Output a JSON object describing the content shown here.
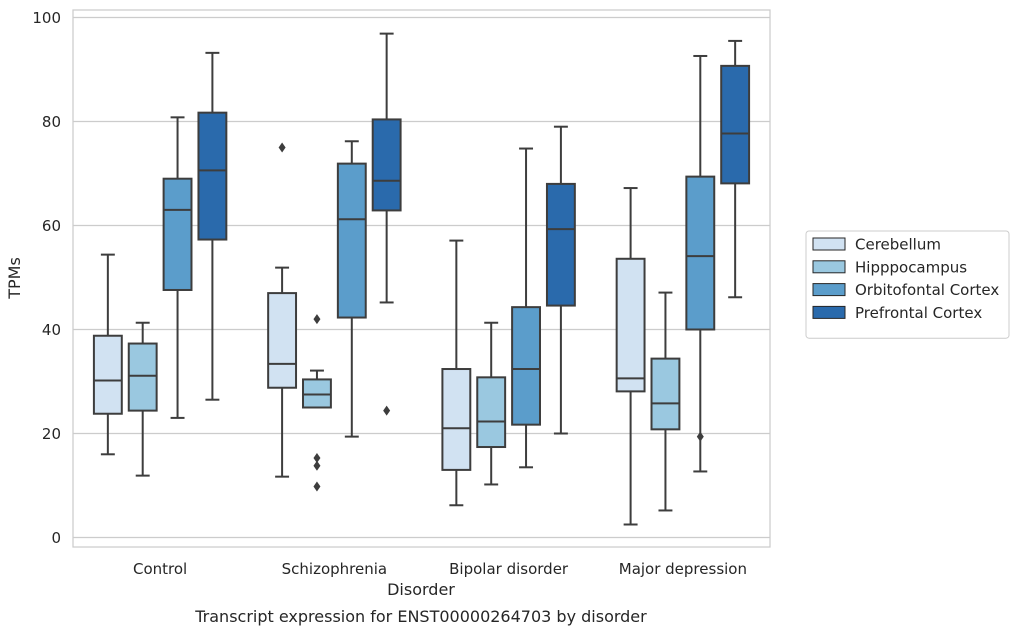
{
  "chart_data": {
    "type": "box",
    "title": "",
    "caption": "Transcript expression for ENST00000264703 by disorder",
    "xlabel": "Disorder",
    "ylabel": "TPMs",
    "ylim": [
      -2,
      101
    ],
    "yticks": [
      0,
      20,
      40,
      60,
      80,
      100
    ],
    "categories": [
      "Control",
      "Schizophrenia",
      "Bipolar disorder",
      "Major depression"
    ],
    "grid": "horizontal",
    "legend_position": "right",
    "series": [
      {
        "name": "Cerebellum",
        "color": "#d1e2f2",
        "boxes": [
          {
            "whisker_low": 16,
            "q1": 23.8,
            "median": 30.2,
            "q3": 38.8,
            "whisker_high": 54.4,
            "outliers": []
          },
          {
            "whisker_low": 11.7,
            "q1": 28.8,
            "median": 33.4,
            "q3": 47,
            "whisker_high": 51.9,
            "outliers": [
              75
            ]
          },
          {
            "whisker_low": 6.2,
            "q1": 13,
            "median": 21,
            "q3": 32.4,
            "whisker_high": 57.1,
            "outliers": []
          },
          {
            "whisker_low": 2.5,
            "q1": 28.1,
            "median": 30.6,
            "q3": 53.6,
            "whisker_high": 67.2,
            "outliers": []
          }
        ]
      },
      {
        "name": "Hipppocampus",
        "color": "#9ac8e0",
        "boxes": [
          {
            "whisker_low": 11.9,
            "q1": 24.4,
            "median": 31.1,
            "q3": 37.3,
            "whisker_high": 41.3,
            "outliers": []
          },
          {
            "whisker_low": 25,
            "q1": 25,
            "median": 27.5,
            "q3": 30.4,
            "whisker_high": 32.1,
            "outliers": [
              42,
              15.3,
              13.8,
              9.8
            ]
          },
          {
            "whisker_low": 10.2,
            "q1": 17.4,
            "median": 22.3,
            "q3": 30.8,
            "whisker_high": 41.3,
            "outliers": []
          },
          {
            "whisker_low": 5.2,
            "q1": 20.8,
            "median": 25.8,
            "q3": 34.4,
            "whisker_high": 47.1,
            "outliers": []
          }
        ]
      },
      {
        "name": "Orbitofontal Cortex",
        "color": "#5b9dcb",
        "boxes": [
          {
            "whisker_low": 23,
            "q1": 47.6,
            "median": 63,
            "q3": 69,
            "whisker_high": 80.8,
            "outliers": []
          },
          {
            "whisker_low": 19.4,
            "q1": 42.3,
            "median": 61.2,
            "q3": 71.9,
            "whisker_high": 76.2,
            "outliers": []
          },
          {
            "whisker_low": 13.5,
            "q1": 21.7,
            "median": 32.4,
            "q3": 44.3,
            "whisker_high": 74.8,
            "outliers": []
          },
          {
            "whisker_low": 12.7,
            "q1": 40,
            "median": 54.1,
            "q3": 69.4,
            "whisker_high": 92.6,
            "outliers": [
              19.4
            ]
          }
        ]
      },
      {
        "name": "Prefrontal Cortex",
        "color": "#2a6aac",
        "boxes": [
          {
            "whisker_low": 26.5,
            "q1": 57.3,
            "median": 70.6,
            "q3": 81.7,
            "whisker_high": 93.2,
            "outliers": []
          },
          {
            "whisker_low": 45.2,
            "q1": 62.9,
            "median": 68.6,
            "q3": 80.4,
            "whisker_high": 96.9,
            "outliers": [
              24.4
            ]
          },
          {
            "whisker_low": 20,
            "q1": 44.6,
            "median": 59.3,
            "q3": 68,
            "whisker_high": 79,
            "outliers": []
          },
          {
            "whisker_low": 46.2,
            "q1": 68.1,
            "median": 77.7,
            "q3": 90.7,
            "whisker_high": 95.5,
            "outliers": []
          }
        ]
      }
    ]
  }
}
